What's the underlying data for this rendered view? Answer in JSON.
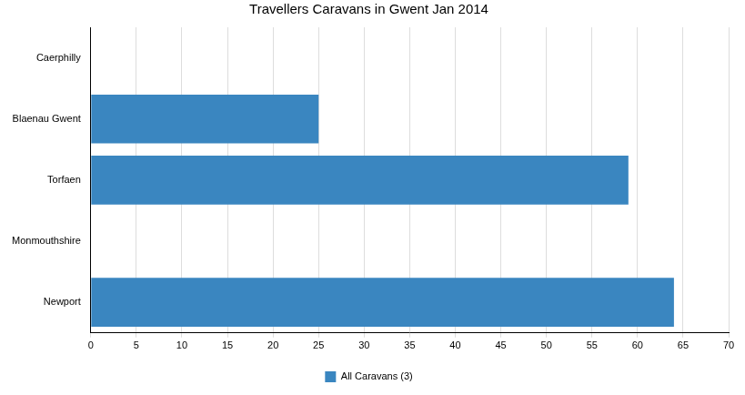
{
  "chart_data": {
    "type": "bar",
    "orientation": "horizontal",
    "title": "Travellers Caravans in Gwent Jan 2014",
    "categories": [
      "Caerphilly",
      "Blaenau Gwent",
      "Torfaen",
      "Monmouthshire",
      "Newport"
    ],
    "series": [
      {
        "name": "All Caravans (3)",
        "color": "#3a86c0",
        "values": [
          null,
          25,
          59,
          null,
          64
        ]
      }
    ],
    "xlim": [
      0,
      70
    ],
    "xticks": [
      0,
      5,
      10,
      15,
      20,
      25,
      30,
      35,
      40,
      45,
      50,
      55,
      60,
      65,
      70
    ],
    "grid": true,
    "legend": "bottom"
  }
}
